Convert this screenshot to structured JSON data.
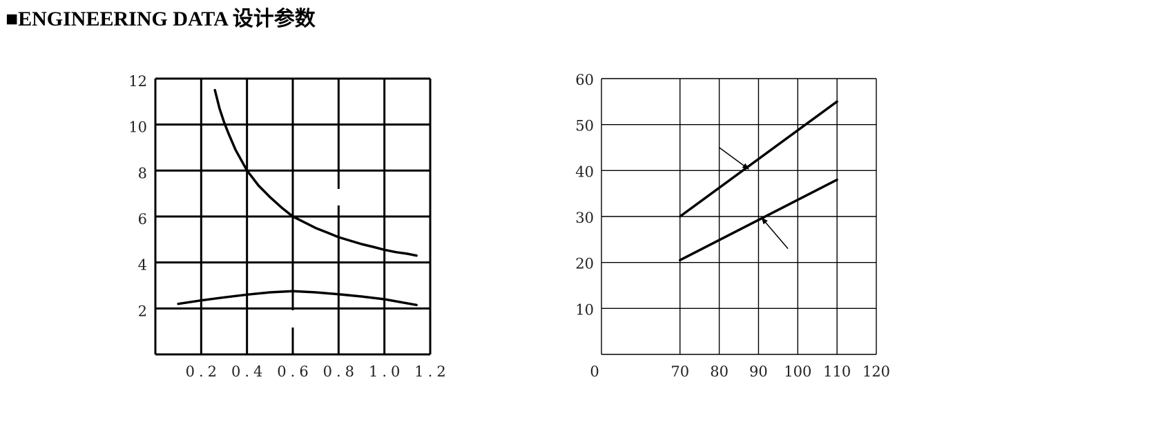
{
  "header": {
    "title": "■ENGINEERING DATA 设计参数"
  },
  "chart_data": [
    {
      "type": "line",
      "xlim": [
        0,
        1.2
      ],
      "ylim": [
        0,
        12
      ],
      "xticks": [
        0.2,
        0.4,
        0.6,
        0.8,
        1.0,
        1.2
      ],
      "xtick_labels": [
        "0.2",
        "0.4",
        "0.6",
        "0.8",
        "1.0",
        "1.2"
      ],
      "yticks": [
        2,
        4,
        6,
        8,
        10,
        12
      ],
      "ytick_labels": [
        "2",
        "4",
        "6",
        "8",
        "10",
        "12"
      ],
      "grid": true,
      "series": [
        {
          "x": [
            0.26,
            0.28,
            0.3,
            0.32,
            0.35,
            0.4,
            0.45,
            0.5,
            0.55,
            0.6,
            0.65,
            0.7,
            0.75,
            0.8,
            0.85,
            0.9,
            0.95,
            1.0,
            1.05,
            1.1,
            1.14
          ],
          "values": [
            11.5,
            10.7,
            10.1,
            9.6,
            8.9,
            8.0,
            7.35,
            6.85,
            6.4,
            6.0,
            5.75,
            5.5,
            5.3,
            5.1,
            4.95,
            4.8,
            4.68,
            4.55,
            4.45,
            4.38,
            4.3
          ]
        },
        {
          "x": [
            0.1,
            0.2,
            0.3,
            0.4,
            0.5,
            0.6,
            0.7,
            0.8,
            0.9,
            1.0,
            1.14
          ],
          "values": [
            2.2,
            2.35,
            2.48,
            2.6,
            2.7,
            2.75,
            2.7,
            2.62,
            2.52,
            2.4,
            2.15
          ]
        }
      ]
    },
    {
      "type": "line",
      "xlim": [
        50,
        120
      ],
      "ylim": [
        0,
        60
      ],
      "origin_label": "0",
      "xticks": [
        70,
        80,
        90,
        100,
        110,
        120
      ],
      "xtick_labels": [
        "70",
        "80",
        "90",
        "100",
        "110",
        "120"
      ],
      "yticks": [
        10,
        20,
        30,
        40,
        50,
        60
      ],
      "ytick_labels": [
        "10",
        "20",
        "30",
        "40",
        "50",
        "60"
      ],
      "grid": true,
      "series": [
        {
          "x": [
            70,
            110
          ],
          "values": [
            30,
            55
          ]
        },
        {
          "x": [
            70,
            110
          ],
          "values": [
            20.5,
            38
          ]
        }
      ],
      "annotations": [
        {
          "type": "arrow",
          "from": [
            80,
            45
          ],
          "to": [
            87.5,
            40.3
          ]
        },
        {
          "type": "arrow",
          "from": [
            97.5,
            23
          ],
          "to": [
            90.8,
            29.7
          ]
        }
      ]
    }
  ]
}
